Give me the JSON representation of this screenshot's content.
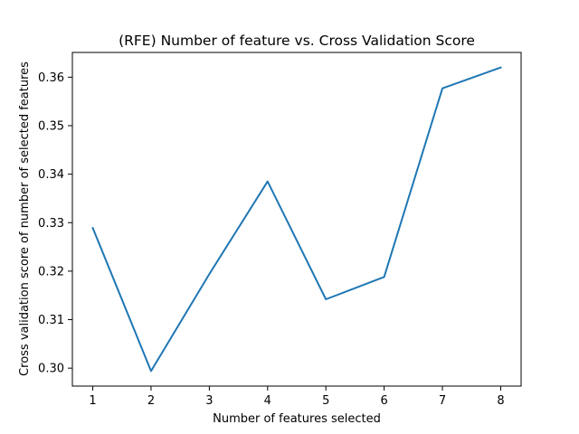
{
  "chart_data": {
    "type": "line",
    "title": "(RFE) Number of feature vs. Cross Validation Score",
    "xlabel": "Number of features selected",
    "ylabel": "Cross validation score of number of selected features",
    "x": [
      1,
      2,
      3,
      4,
      5,
      6,
      7,
      8
    ],
    "series": [
      {
        "values": [
          0.3289,
          0.2994,
          0.3194,
          0.3385,
          0.3142,
          0.3188,
          0.3577,
          0.362
        ]
      }
    ],
    "xticks": [
      "1",
      "2",
      "3",
      "4",
      "5",
      "6",
      "7",
      "8"
    ],
    "yticks": [
      "0.30",
      "0.31",
      "0.32",
      "0.33",
      "0.34",
      "0.35",
      "0.36"
    ],
    "xlim": [
      0.65,
      8.35
    ],
    "ylim": [
      0.2963,
      0.3651
    ],
    "grid": false,
    "legend": "none",
    "colors": {
      "line": "#1f77b4",
      "axes": "#000000",
      "background": "#ffffff"
    }
  }
}
